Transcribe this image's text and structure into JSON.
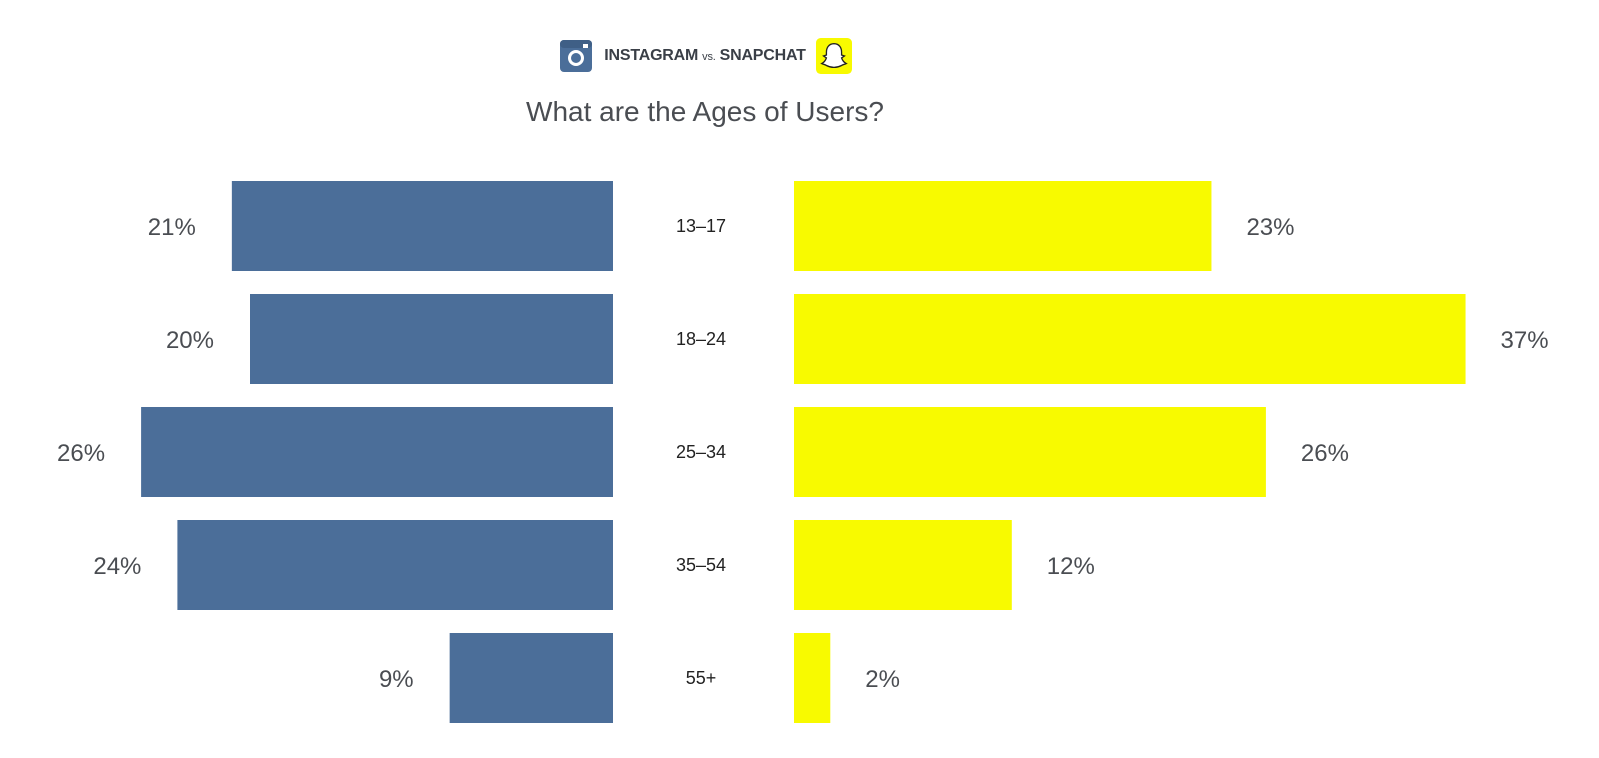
{
  "header": {
    "brand_left": "INSTAGRAM",
    "brand_vs": "vs.",
    "brand_right": "SNAPCHAT",
    "left_icon": "instagram-icon",
    "right_icon": "snapchat-ghost-icon"
  },
  "colors": {
    "instagram": "#4b6e99",
    "snapchat": "#f8fa00",
    "value_text": "#4a4d52",
    "category_text": "#222222"
  },
  "chart_data": {
    "type": "bar",
    "title": "What are the Ages of Users?",
    "categories": [
      "13–17",
      "18–24",
      "25–34",
      "35–54",
      "55+"
    ],
    "series": [
      {
        "name": "INSTAGRAM",
        "values": [
          21,
          20,
          26,
          24,
          9
        ],
        "labels": [
          "21%",
          "20%",
          "26%",
          "24%",
          "9%"
        ],
        "side": "left"
      },
      {
        "name": "SNAPCHAT",
        "values": [
          23,
          37,
          26,
          12,
          2
        ],
        "labels": [
          "23%",
          "37%",
          "26%",
          "12%",
          "2%"
        ],
        "side": "right"
      }
    ],
    "unit": "%",
    "grid": false,
    "legend": "top-center"
  }
}
